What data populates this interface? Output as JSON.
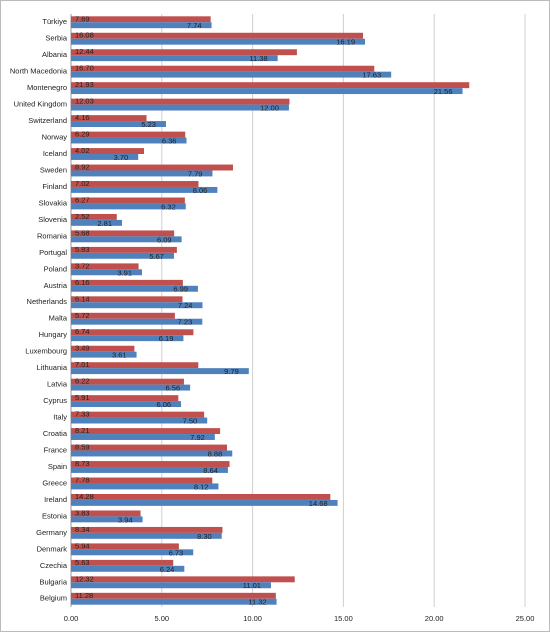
{
  "chart_data": {
    "type": "hbar",
    "categories": [
      "Türkiye",
      "Serbia",
      "Albania",
      "North Macedonia",
      "Montenegro",
      "United Kingdom",
      "Switzerland",
      "Norway",
      "Iceland",
      "Sweden",
      "Finland",
      "Slovakia",
      "Slovenia",
      "Romania",
      "Portugal",
      "Poland",
      "Austria",
      "Netherlands",
      "Malta",
      "Hungary",
      "Luxembourg",
      "Lithuania",
      "Latvia",
      "Cyprus",
      "Italy",
      "Croatia",
      "France",
      "Spain",
      "Greece",
      "Ireland",
      "Estonia",
      "Germany",
      "Denmark",
      "Czechia",
      "Bulgaria",
      "Belgium"
    ],
    "series": [
      {
        "color": "#c0504d",
        "values": [
          7.69,
          16.08,
          12.44,
          16.7,
          21.93,
          12.03,
          4.16,
          6.29,
          4.02,
          8.92,
          7.02,
          6.27,
          2.52,
          5.68,
          5.83,
          3.72,
          6.16,
          6.14,
          5.72,
          6.74,
          3.49,
          7.01,
          6.22,
          5.91,
          7.33,
          8.21,
          8.59,
          8.73,
          7.78,
          14.28,
          3.83,
          8.34,
          5.94,
          5.63,
          12.32,
          11.28
        ],
        "value_labels": [
          "7.69",
          "16.08",
          "12.44",
          "16.70",
          "21.93",
          "12.03",
          "4.16",
          "6.29",
          "4.02",
          "8.92",
          "7.02",
          "6.27",
          "2.52",
          "5.68",
          "5.83",
          "3.72",
          "6.16",
          "6.14",
          "5.72",
          "6.74",
          "3.49",
          "7.01",
          "6.22",
          "5.91",
          "7.33",
          "8.21",
          "8.59",
          "8.73",
          "7.78",
          "14.28",
          "3.83",
          "8.34",
          "5.94",
          "5.63",
          "12.32",
          "11.28"
        ]
      },
      {
        "color": "#4f81bd",
        "values": [
          7.74,
          16.19,
          11.38,
          17.63,
          21.56,
          12.0,
          5.23,
          6.36,
          3.7,
          7.79,
          8.06,
          6.32,
          2.81,
          6.09,
          5.67,
          3.91,
          6.99,
          7.24,
          7.23,
          6.19,
          3.61,
          9.79,
          6.56,
          6.06,
          7.5,
          7.92,
          8.88,
          8.64,
          8.12,
          14.68,
          3.94,
          8.3,
          6.73,
          6.24,
          11.01,
          11.32
        ],
        "value_labels": [
          "7.74",
          "16.19",
          "11.38",
          "17.63",
          "21.56",
          "12.00",
          "5.23",
          "6.36",
          "3.70",
          "7.79",
          "8.06",
          "6.32",
          "2.81",
          "6.09",
          "5.67",
          "3.91",
          "6.99",
          "7.24",
          "7.23",
          "6.19",
          "3.61",
          "9.79",
          "6.56",
          "6.06",
          "7.50",
          "7.92",
          "8.88",
          "8.64",
          "8.12",
          "14.68",
          "3.94",
          "8.30",
          "6.73",
          "6.24",
          "11.01",
          "11.32"
        ]
      }
    ],
    "xlim": [
      0,
      25
    ],
    "xticks": [
      {
        "value": 0,
        "label": "0.00"
      },
      {
        "value": 5,
        "label": "5.00"
      },
      {
        "value": 10,
        "label": "10.00"
      },
      {
        "value": 15,
        "label": "15.00"
      },
      {
        "value": 20,
        "label": "20.00"
      },
      {
        "value": 25,
        "label": "25.00"
      }
    ],
    "grid": true
  }
}
